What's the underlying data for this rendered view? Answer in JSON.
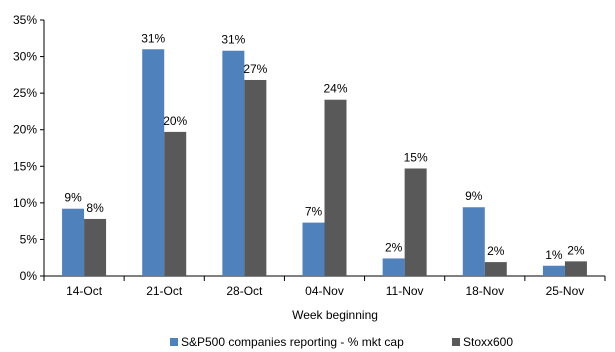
{
  "chart_data": {
    "type": "bar",
    "xlabel": "Week beginning",
    "ylabel": "",
    "categories": [
      "14-Oct",
      "21-Oct",
      "28-Oct",
      "04-Nov",
      "11-Nov",
      "18-Nov",
      "25-Nov"
    ],
    "series": [
      {
        "name": "S&P500 companies reporting -  % mkt cap",
        "values": [
          9.2,
          31.0,
          30.8,
          7.3,
          2.4,
          9.4,
          1.4
        ],
        "labels": [
          "9%",
          "31%",
          "31%",
          "7%",
          "2%",
          "9%",
          "1%"
        ],
        "color": "#4f81bd"
      },
      {
        "name": "Stoxx600",
        "values": [
          7.8,
          19.7,
          26.8,
          24.1,
          14.7,
          1.9,
          2.0
        ],
        "labels": [
          "8%",
          "20%",
          "27%",
          "24%",
          "15%",
          "2%",
          "2%"
        ],
        "color": "#595959"
      }
    ],
    "ylim": [
      0,
      35
    ],
    "yticks": [
      0,
      5,
      10,
      15,
      20,
      25,
      30,
      35
    ],
    "ytick_labels": [
      "0%",
      "5%",
      "10%",
      "15%",
      "20%",
      "25%",
      "30%",
      "35%"
    ],
    "grid": false,
    "legend_position": "bottom"
  }
}
